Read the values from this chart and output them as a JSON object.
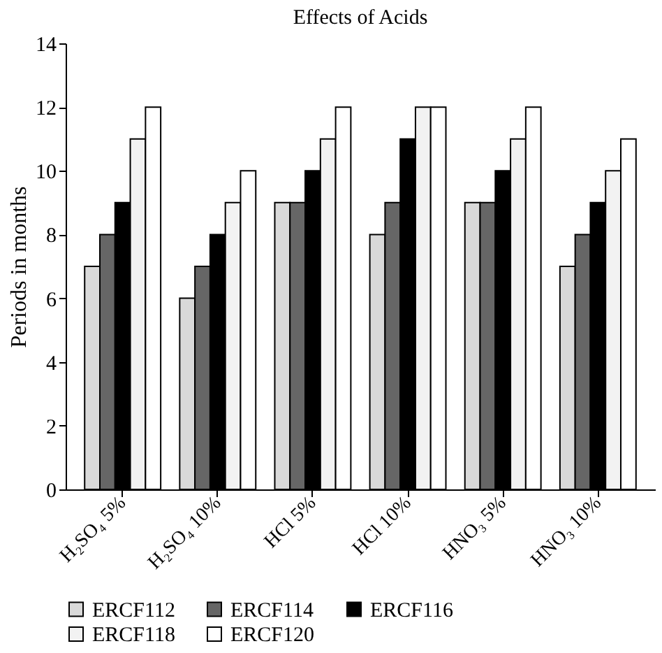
{
  "chart_data": {
    "type": "bar",
    "title": "Effects of Acids",
    "ylabel": "Periods in months",
    "categories": [
      "H₂SO₄ 5%",
      "H₂SO₄ 10%",
      "HCl 5%",
      "HCl 10%",
      "HNO₃ 5%",
      "HNO₃ 10%"
    ],
    "series": [
      {
        "name": "ERCF112",
        "color": "#d9d9d9",
        "values": [
          7,
          6,
          9,
          8,
          9,
          7
        ]
      },
      {
        "name": "ERCF114",
        "color": "#666666",
        "values": [
          8,
          7,
          9,
          9,
          9,
          8
        ]
      },
      {
        "name": "ERCF116",
        "color": "#000000",
        "values": [
          9,
          8,
          10,
          11,
          10,
          9
        ]
      },
      {
        "name": "ERCF118",
        "color": "#f2f2f2",
        "values": [
          11,
          9,
          11,
          12,
          11,
          10
        ]
      },
      {
        "name": "ERCF120",
        "color": "#ffffff",
        "values": [
          12,
          10,
          12,
          12,
          12,
          11
        ]
      }
    ],
    "ylim": [
      0,
      14
    ],
    "yticks": [
      0,
      2,
      4,
      6,
      8,
      10,
      12,
      14
    ],
    "grid": false,
    "legend": "bottom"
  }
}
